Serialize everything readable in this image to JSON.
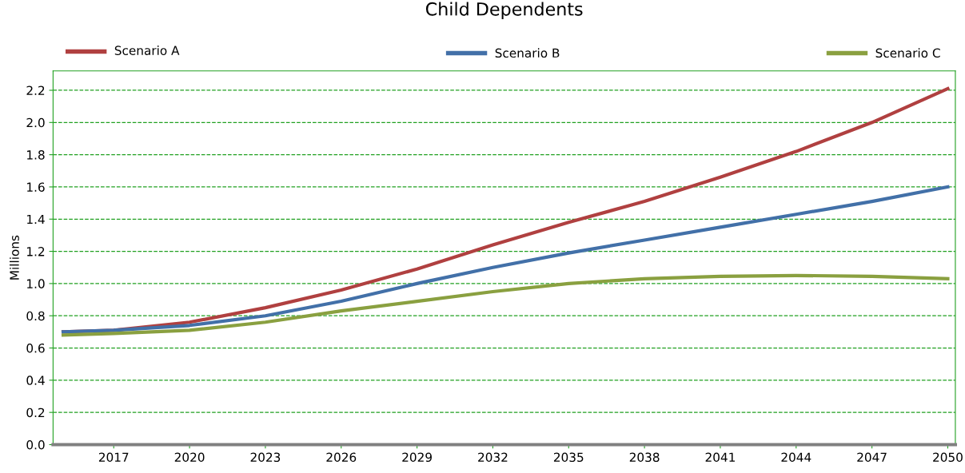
{
  "chart_data": {
    "type": "line",
    "title": "Child Dependents",
    "ylabel": "Millions",
    "x": [
      2015,
      2017,
      2020,
      2023,
      2026,
      2029,
      2032,
      2035,
      2038,
      2041,
      2044,
      2047,
      2050
    ],
    "series": [
      {
        "name": "Scenario A",
        "color": "#b04040",
        "values": [
          0.7,
          0.71,
          0.76,
          0.85,
          0.96,
          1.09,
          1.24,
          1.38,
          1.51,
          1.66,
          1.82,
          2.0,
          2.21
        ]
      },
      {
        "name": "Scenario B",
        "color": "#4270a8",
        "values": [
          0.7,
          0.71,
          0.74,
          0.8,
          0.89,
          1.0,
          1.1,
          1.19,
          1.27,
          1.35,
          1.43,
          1.51,
          1.6
        ]
      },
      {
        "name": "Scenario C",
        "color": "#8aa040",
        "values": [
          0.68,
          0.69,
          0.71,
          0.76,
          0.83,
          0.89,
          0.95,
          1.0,
          1.03,
          1.045,
          1.05,
          1.045,
          1.03
        ]
      }
    ],
    "xlim": [
      2014.6,
      2050.3
    ],
    "xticks": [
      2017,
      2020,
      2023,
      2026,
      2029,
      2032,
      2035,
      2038,
      2041,
      2044,
      2047,
      2050
    ],
    "ylim": [
      0,
      2.32
    ],
    "yticks": [
      {
        "value": 0,
        "label": "0.0"
      },
      0.2,
      0.4,
      0.6,
      0.8,
      {
        "value": 1,
        "label": "1.0"
      },
      1.2,
      1.4,
      1.6,
      1.8,
      {
        "value": 2,
        "label": "2.0"
      },
      2.2
    ],
    "grid": "y",
    "legend": "top",
    "line_style": "solid",
    "marker": "none"
  }
}
